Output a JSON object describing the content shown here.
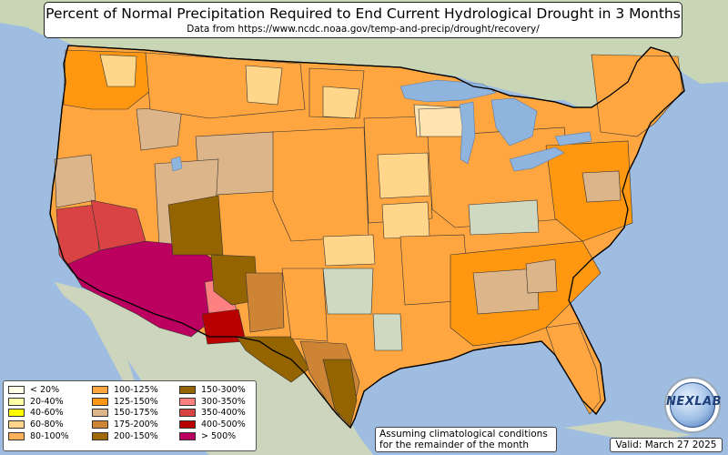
{
  "title": "Percent of Normal Precipitation Required to End Current Hydrological Drought in 3 Months",
  "subtitle": "Data from https://www.ncdc.noaa.gov/temp-and-precip/drought/recovery/",
  "legend": {
    "columns": [
      [
        {
          "label": "< 20%",
          "color": "#ffffe8"
        },
        {
          "label": "20-40%",
          "color": "#ffffa8"
        },
        {
          "label": "40-60%",
          "color": "#ffff00"
        },
        {
          "label": "60-80%",
          "color": "#ffd68a"
        },
        {
          "label": "80-100%",
          "color": "#ffb05a"
        }
      ],
      [
        {
          "label": "100-125%",
          "color": "#ffa640"
        },
        {
          "label": "125-150%",
          "color": "#ff9810"
        },
        {
          "label": "150-175%",
          "color": "#ddb58a"
        },
        {
          "label": "175-200%",
          "color": "#cd8535"
        },
        {
          "label": "200-150%",
          "color": "#a16808"
        }
      ],
      [
        {
          "label": "150-300%",
          "color": "#936400"
        },
        {
          "label": "300-350%",
          "color": "#ff8080"
        },
        {
          "label": "350-400%",
          "color": "#d94343"
        },
        {
          "label": "400-500%",
          "color": "#b80000"
        },
        {
          "label": "> 500%",
          "color": "#bb0060"
        }
      ]
    ]
  },
  "note": {
    "line1": "Assuming climatological conditions",
    "line2": "for the remainder of the month"
  },
  "valid": "Valid: March 27 2025",
  "logo_text": "NEXLAB",
  "colors": {
    "ocean": "#9fbde0",
    "land": "#cfd8c0",
    "lake": "#8fb4dd"
  }
}
